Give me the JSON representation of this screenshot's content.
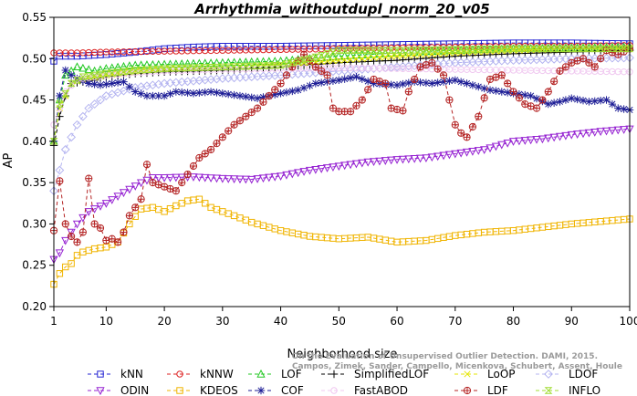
{
  "chart_data": {
    "type": "line",
    "title": "Arrhythmia_withoutdupl_norm_20_v05",
    "xlabel": "Neighborhood size",
    "ylabel": "AP",
    "xlim": [
      1,
      100
    ],
    "ylim": [
      0.2,
      0.55
    ],
    "xticks": [
      1,
      10,
      20,
      30,
      40,
      50,
      60,
      70,
      80,
      90,
      100
    ],
    "yticks": [
      0.2,
      0.25,
      0.3,
      0.35,
      0.4,
      0.45,
      0.5,
      0.55
    ],
    "grid": false,
    "legend_position": "bottom",
    "credit_lines": [
      "Campos, Zimek, Sander, Campello, Micenkova, Schubert, Assent, Houle",
      "On the Evaluation of Unsupervised Outlier Detection. DAMI, 2015."
    ],
    "series": [
      {
        "name": "kNN",
        "color": "#2323d2",
        "marker": "square",
        "dash": "4,3",
        "points": [
          [
            1,
            0.497
          ],
          [
            2,
            0.503
          ],
          [
            5,
            0.503
          ],
          [
            10,
            0.505
          ],
          [
            15,
            0.508
          ],
          [
            20,
            0.512
          ],
          [
            25,
            0.514
          ],
          [
            30,
            0.515
          ],
          [
            40,
            0.515
          ],
          [
            50,
            0.516
          ],
          [
            60,
            0.517
          ],
          [
            70,
            0.518
          ],
          [
            80,
            0.519
          ],
          [
            90,
            0.519
          ],
          [
            100,
            0.518
          ]
        ]
      },
      {
        "name": "kNNW",
        "color": "#dc2323",
        "marker": "circle",
        "dash": "4,3",
        "points": [
          [
            1,
            0.507
          ],
          [
            5,
            0.507
          ],
          [
            10,
            0.508
          ],
          [
            20,
            0.509
          ],
          [
            30,
            0.51
          ],
          [
            40,
            0.511
          ],
          [
            50,
            0.512
          ],
          [
            60,
            0.513
          ],
          [
            70,
            0.514
          ],
          [
            80,
            0.515
          ],
          [
            90,
            0.515
          ],
          [
            100,
            0.516
          ]
        ]
      },
      {
        "name": "LOF",
        "color": "#23c823",
        "marker": "triangle-up",
        "dash": "4,3",
        "points": [
          [
            1,
            0.4
          ],
          [
            2,
            0.45
          ],
          [
            3,
            0.48
          ],
          [
            5,
            0.49
          ],
          [
            8,
            0.485
          ],
          [
            10,
            0.488
          ],
          [
            15,
            0.492
          ],
          [
            20,
            0.493
          ],
          [
            30,
            0.495
          ],
          [
            40,
            0.497
          ],
          [
            50,
            0.503
          ],
          [
            60,
            0.507
          ],
          [
            70,
            0.51
          ],
          [
            80,
            0.512
          ],
          [
            90,
            0.513
          ],
          [
            100,
            0.514
          ]
        ]
      },
      {
        "name": "SimplifiedLOF",
        "color": "#000000",
        "marker": "plus",
        "dash": "4,3",
        "points": [
          [
            1,
            0.395
          ],
          [
            2,
            0.43
          ],
          [
            3,
            0.455
          ],
          [
            4,
            0.47
          ],
          [
            6,
            0.472
          ],
          [
            8,
            0.474
          ],
          [
            10,
            0.478
          ],
          [
            15,
            0.482
          ],
          [
            20,
            0.484
          ],
          [
            25,
            0.485
          ],
          [
            30,
            0.486
          ],
          [
            40,
            0.49
          ],
          [
            50,
            0.495
          ],
          [
            60,
            0.498
          ],
          [
            70,
            0.503
          ],
          [
            80,
            0.506
          ],
          [
            90,
            0.508
          ],
          [
            100,
            0.51
          ]
        ]
      },
      {
        "name": "LoOP",
        "color": "#e6e600",
        "marker": "x",
        "dash": "4,3",
        "points": [
          [
            1,
            0.4
          ],
          [
            2,
            0.44
          ],
          [
            4,
            0.47
          ],
          [
            6,
            0.475
          ],
          [
            10,
            0.48
          ],
          [
            15,
            0.484
          ],
          [
            20,
            0.487
          ],
          [
            30,
            0.49
          ],
          [
            40,
            0.493
          ],
          [
            50,
            0.498
          ],
          [
            60,
            0.503
          ],
          [
            70,
            0.507
          ],
          [
            80,
            0.51
          ],
          [
            90,
            0.512
          ],
          [
            100,
            0.513
          ]
        ]
      },
      {
        "name": "LDOF",
        "color": "#b4b4f0",
        "marker": "diamond",
        "dash": "4,3",
        "points": [
          [
            1,
            0.34
          ],
          [
            3,
            0.39
          ],
          [
            5,
            0.42
          ],
          [
            7,
            0.44
          ],
          [
            10,
            0.455
          ],
          [
            15,
            0.465
          ],
          [
            20,
            0.47
          ],
          [
            30,
            0.476
          ],
          [
            40,
            0.48
          ],
          [
            50,
            0.485
          ],
          [
            60,
            0.49
          ],
          [
            70,
            0.495
          ],
          [
            80,
            0.498
          ],
          [
            90,
            0.5
          ],
          [
            100,
            0.501
          ]
        ]
      },
      {
        "name": "ODIN",
        "color": "#9623d2",
        "marker": "triangle-down",
        "dash": "4,3",
        "points": [
          [
            1,
            0.257
          ],
          [
            2,
            0.265
          ],
          [
            3,
            0.28
          ],
          [
            5,
            0.3
          ],
          [
            7,
            0.315
          ],
          [
            10,
            0.325
          ],
          [
            13,
            0.338
          ],
          [
            16,
            0.35
          ],
          [
            18,
            0.356
          ],
          [
            20,
            0.356
          ],
          [
            25,
            0.357
          ],
          [
            30,
            0.355
          ],
          [
            35,
            0.354
          ],
          [
            40,
            0.358
          ],
          [
            45,
            0.365
          ],
          [
            50,
            0.37
          ],
          [
            55,
            0.375
          ],
          [
            60,
            0.378
          ],
          [
            65,
            0.38
          ],
          [
            70,
            0.385
          ],
          [
            75,
            0.39
          ],
          [
            80,
            0.4
          ],
          [
            85,
            0.403
          ],
          [
            90,
            0.408
          ],
          [
            95,
            0.412
          ],
          [
            100,
            0.415
          ]
        ]
      },
      {
        "name": "KDEOS",
        "color": "#f0b400",
        "marker": "square",
        "dash": "4,3",
        "points": [
          [
            1,
            0.227
          ],
          [
            2,
            0.24
          ],
          [
            3,
            0.248
          ],
          [
            4,
            0.252
          ],
          [
            5,
            0.262
          ],
          [
            6,
            0.266
          ],
          [
            8,
            0.27
          ],
          [
            10,
            0.272
          ],
          [
            12,
            0.278
          ],
          [
            14,
            0.3
          ],
          [
            16,
            0.318
          ],
          [
            18,
            0.32
          ],
          [
            20,
            0.315
          ],
          [
            22,
            0.322
          ],
          [
            24,
            0.328
          ],
          [
            26,
            0.33
          ],
          [
            28,
            0.32
          ],
          [
            30,
            0.315
          ],
          [
            32,
            0.31
          ],
          [
            35,
            0.302
          ],
          [
            40,
            0.292
          ],
          [
            45,
            0.285
          ],
          [
            50,
            0.282
          ],
          [
            55,
            0.284
          ],
          [
            60,
            0.278
          ],
          [
            65,
            0.28
          ],
          [
            70,
            0.286
          ],
          [
            75,
            0.29
          ],
          [
            80,
            0.292
          ],
          [
            85,
            0.296
          ],
          [
            90,
            0.3
          ],
          [
            95,
            0.303
          ],
          [
            100,
            0.306
          ]
        ]
      },
      {
        "name": "COF",
        "color": "#1e1e96",
        "marker": "star",
        "dash": "4,3",
        "points": [
          [
            1,
            0.4
          ],
          [
            2,
            0.455
          ],
          [
            3,
            0.486
          ],
          [
            4,
            0.48
          ],
          [
            5,
            0.476
          ],
          [
            7,
            0.47
          ],
          [
            9,
            0.468
          ],
          [
            11,
            0.47
          ],
          [
            13,
            0.472
          ],
          [
            15,
            0.46
          ],
          [
            17,
            0.455
          ],
          [
            20,
            0.455
          ],
          [
            22,
            0.46
          ],
          [
            25,
            0.458
          ],
          [
            28,
            0.46
          ],
          [
            30,
            0.458
          ],
          [
            33,
            0.455
          ],
          [
            36,
            0.452
          ],
          [
            40,
            0.458
          ],
          [
            43,
            0.462
          ],
          [
            46,
            0.47
          ],
          [
            50,
            0.474
          ],
          [
            53,
            0.478
          ],
          [
            56,
            0.47
          ],
          [
            60,
            0.468
          ],
          [
            63,
            0.472
          ],
          [
            66,
            0.47
          ],
          [
            70,
            0.474
          ],
          [
            73,
            0.468
          ],
          [
            76,
            0.462
          ],
          [
            80,
            0.458
          ],
          [
            83,
            0.455
          ],
          [
            86,
            0.445
          ],
          [
            88,
            0.448
          ],
          [
            90,
            0.452
          ],
          [
            93,
            0.448
          ],
          [
            96,
            0.45
          ],
          [
            98,
            0.44
          ],
          [
            100,
            0.438
          ]
        ]
      },
      {
        "name": "FastABOD",
        "color": "#f0c8f0",
        "marker": "circle",
        "dash": "4,3",
        "points": [
          [
            1,
            0.42
          ],
          [
            3,
            0.46
          ],
          [
            5,
            0.475
          ],
          [
            10,
            0.48
          ],
          [
            15,
            0.483
          ],
          [
            20,
            0.485
          ],
          [
            30,
            0.487
          ],
          [
            40,
            0.488
          ],
          [
            50,
            0.489
          ],
          [
            60,
            0.488
          ],
          [
            70,
            0.487
          ],
          [
            80,
            0.486
          ],
          [
            90,
            0.485
          ],
          [
            100,
            0.484
          ]
        ]
      },
      {
        "name": "LDF",
        "color": "#b42323",
        "marker": "circled-plus",
        "dash": "4,3",
        "points": [
          [
            1,
            0.292
          ],
          [
            2,
            0.352
          ],
          [
            3,
            0.3
          ],
          [
            4,
            0.285
          ],
          [
            5,
            0.278
          ],
          [
            6,
            0.29
          ],
          [
            7,
            0.355
          ],
          [
            8,
            0.3
          ],
          [
            9,
            0.295
          ],
          [
            10,
            0.28
          ],
          [
            11,
            0.282
          ],
          [
            12,
            0.278
          ],
          [
            13,
            0.29
          ],
          [
            14,
            0.31
          ],
          [
            16,
            0.33
          ],
          [
            17,
            0.372
          ],
          [
            18,
            0.35
          ],
          [
            20,
            0.345
          ],
          [
            22,
            0.34
          ],
          [
            24,
            0.36
          ],
          [
            26,
            0.38
          ],
          [
            28,
            0.39
          ],
          [
            30,
            0.405
          ],
          [
            32,
            0.42
          ],
          [
            34,
            0.43
          ],
          [
            36,
            0.44
          ],
          [
            38,
            0.455
          ],
          [
            40,
            0.47
          ],
          [
            42,
            0.49
          ],
          [
            44,
            0.505
          ],
          [
            46,
            0.49
          ],
          [
            48,
            0.48
          ],
          [
            49,
            0.44
          ],
          [
            50,
            0.436
          ],
          [
            52,
            0.436
          ],
          [
            54,
            0.45
          ],
          [
            56,
            0.475
          ],
          [
            58,
            0.47
          ],
          [
            59,
            0.44
          ],
          [
            61,
            0.437
          ],
          [
            62,
            0.46
          ],
          [
            64,
            0.49
          ],
          [
            66,
            0.495
          ],
          [
            68,
            0.48
          ],
          [
            70,
            0.42
          ],
          [
            71,
            0.41
          ],
          [
            72,
            0.405
          ],
          [
            74,
            0.43
          ],
          [
            76,
            0.475
          ],
          [
            78,
            0.48
          ],
          [
            80,
            0.46
          ],
          [
            82,
            0.445
          ],
          [
            84,
            0.44
          ],
          [
            86,
            0.46
          ],
          [
            88,
            0.485
          ],
          [
            90,
            0.495
          ],
          [
            92,
            0.5
          ],
          [
            94,
            0.49
          ],
          [
            96,
            0.51
          ],
          [
            98,
            0.505
          ],
          [
            100,
            0.512
          ]
        ]
      },
      {
        "name": "INFLO",
        "color": "#a0dc32",
        "marker": "hourglass",
        "dash": "4,3",
        "points": [
          [
            1,
            0.4
          ],
          [
            2,
            0.445
          ],
          [
            4,
            0.47
          ],
          [
            6,
            0.478
          ],
          [
            10,
            0.482
          ],
          [
            15,
            0.486
          ],
          [
            20,
            0.488
          ],
          [
            30,
            0.49
          ],
          [
            40,
            0.492
          ],
          [
            45,
            0.5
          ],
          [
            50,
            0.51
          ],
          [
            60,
            0.51
          ],
          [
            70,
            0.511
          ],
          [
            80,
            0.512
          ],
          [
            90,
            0.512
          ],
          [
            100,
            0.512
          ]
        ]
      }
    ]
  }
}
